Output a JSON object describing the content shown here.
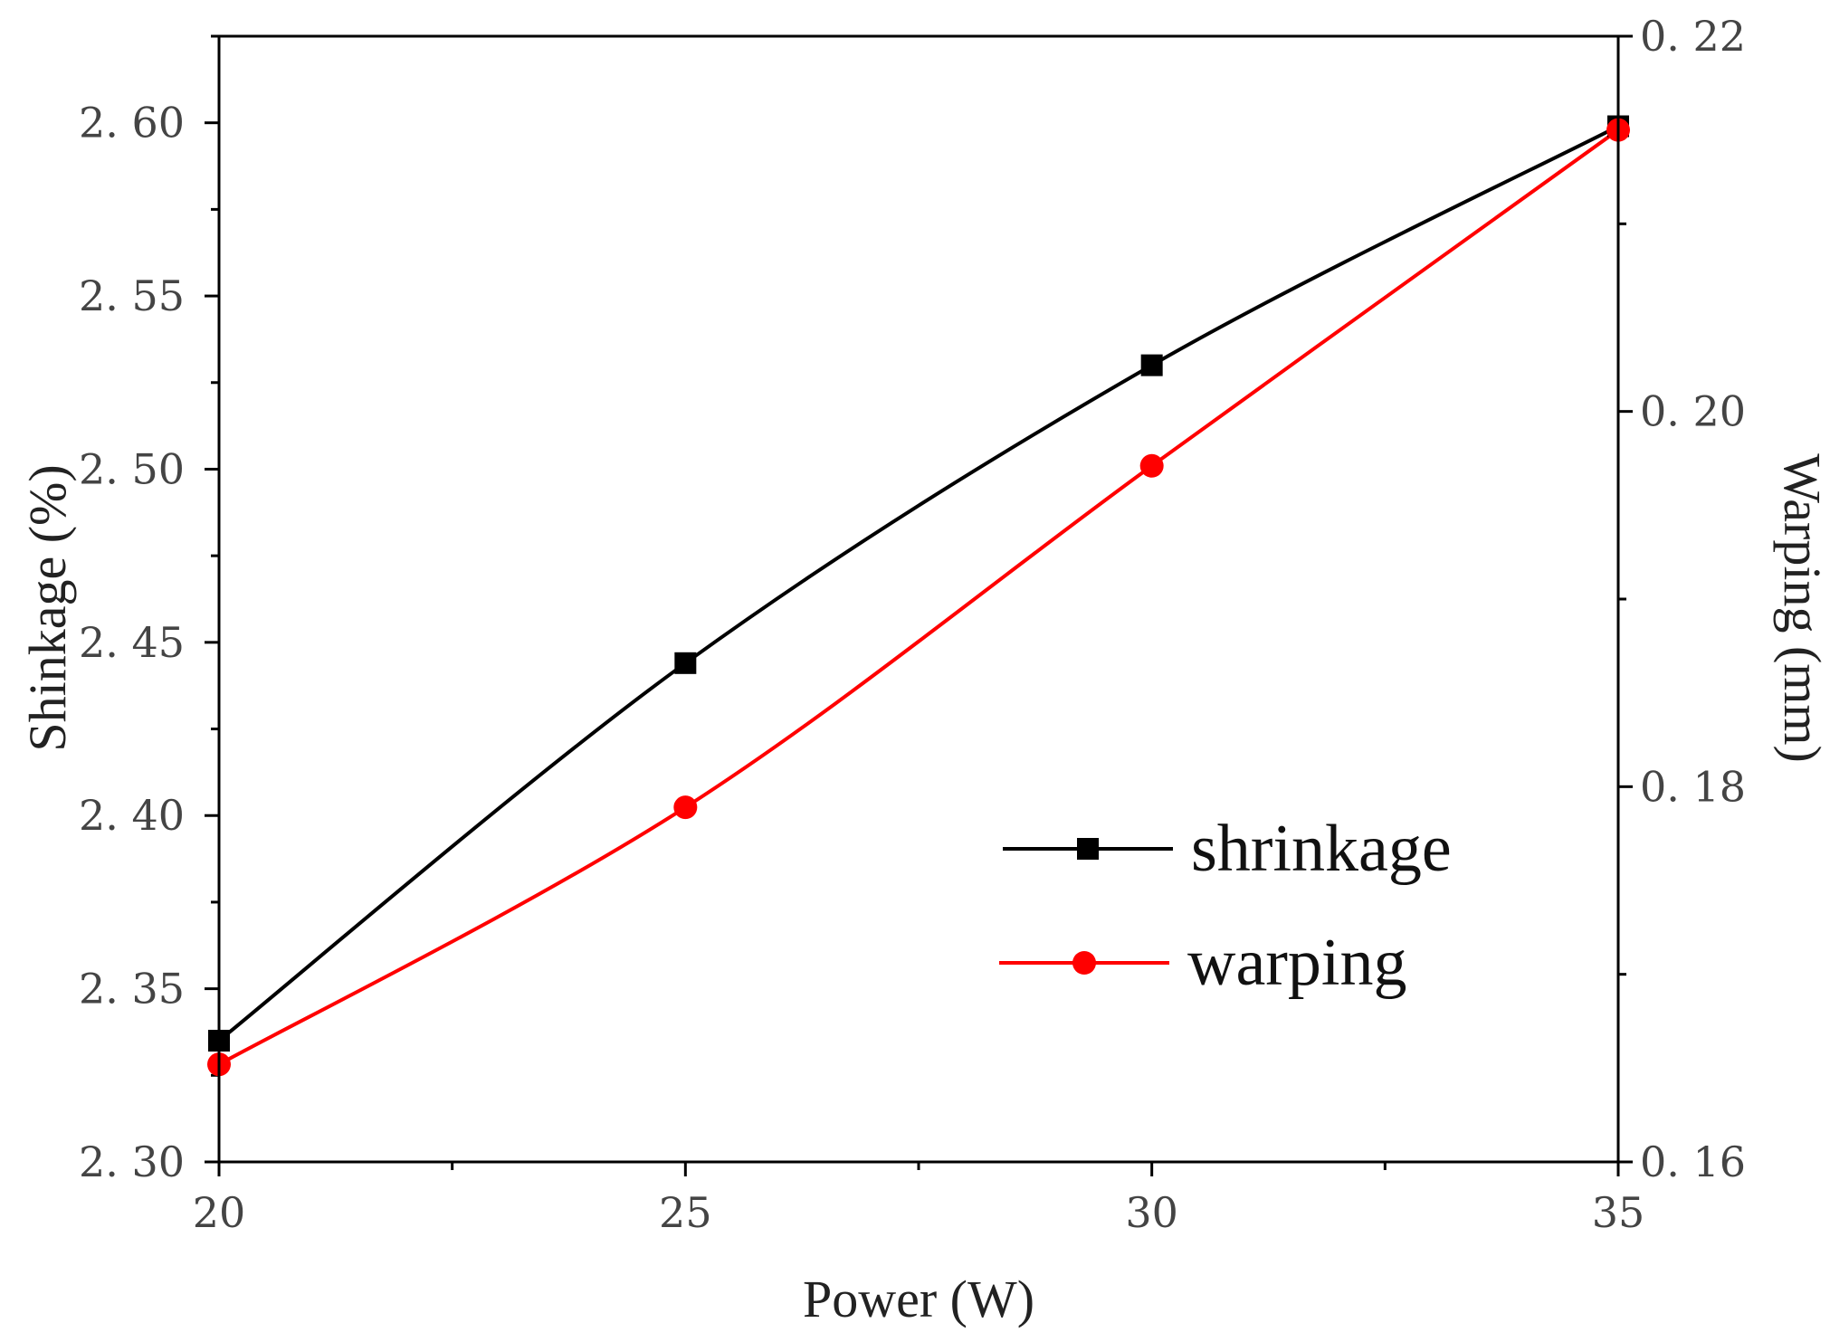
{
  "chart_data": {
    "type": "line",
    "title": "",
    "xlabel": "Power (W)",
    "ylabel": "Shinkage (%)",
    "y2label": "Warping (mm)",
    "x": [
      20,
      25,
      30,
      35
    ],
    "xlim": [
      20,
      35
    ],
    "ylim": [
      2.3,
      2.625
    ],
    "y2lim": [
      0.16,
      0.22
    ],
    "x_ticks": [
      "20",
      "25",
      "30",
      "35"
    ],
    "y_ticks": [
      "2. 30",
      "2. 35",
      "2. 40",
      "2. 45",
      "2. 50",
      "2. 55",
      "2. 60"
    ],
    "y2_ticks": [
      "0. 16",
      "0. 18",
      "0. 20",
      "0. 22"
    ],
    "grid": false,
    "legend_position": "lower-right",
    "series": [
      {
        "name": "shrinkage",
        "axis": "left",
        "marker": "square",
        "color": "#000000",
        "values": [
          2.335,
          2.444,
          2.53,
          2.599
        ]
      },
      {
        "name": "warping",
        "axis": "right",
        "marker": "circle",
        "color": "#ff0000",
        "values": [
          0.1652,
          0.1789,
          0.1971,
          0.215
        ]
      }
    ]
  }
}
